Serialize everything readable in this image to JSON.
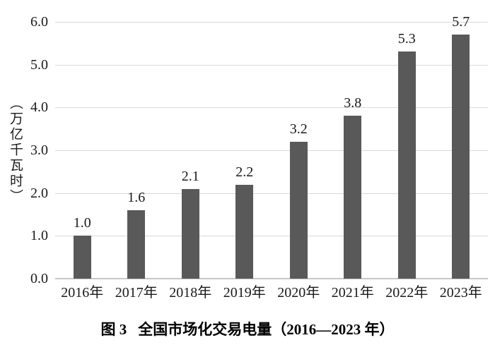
{
  "chart_data": {
    "type": "bar",
    "title": "图 3 全国市场化交易电量（2016—2023 年）",
    "caption": {
      "prefix": "图 3",
      "text": "全国市场化交易电量（2016—2023 年）"
    },
    "categories": [
      "2016年",
      "2017年",
      "2018年",
      "2019年",
      "2020年",
      "2021年",
      "2022年",
      "2023年"
    ],
    "values": [
      1.0,
      1.6,
      2.1,
      2.2,
      3.2,
      3.8,
      5.3,
      5.7
    ],
    "value_labels": [
      "1.0",
      "1.6",
      "2.1",
      "2.2",
      "3.2",
      "3.8",
      "5.3",
      "5.7"
    ],
    "xlabel": "",
    "ylabel": "（万亿千瓦时）",
    "ylim": [
      0.0,
      6.0
    ],
    "ytick_interval": 1.0,
    "ytick_labels": [
      "0.0",
      "1.0",
      "2.0",
      "3.0",
      "4.0",
      "5.0",
      "6.0"
    ],
    "grid": "horizontal",
    "legend": "none",
    "colors": {
      "bar": "#595959",
      "gridline": "#d9d9d9",
      "axis_line": "#c6c6c6",
      "text": "#1a1a1a"
    }
  }
}
